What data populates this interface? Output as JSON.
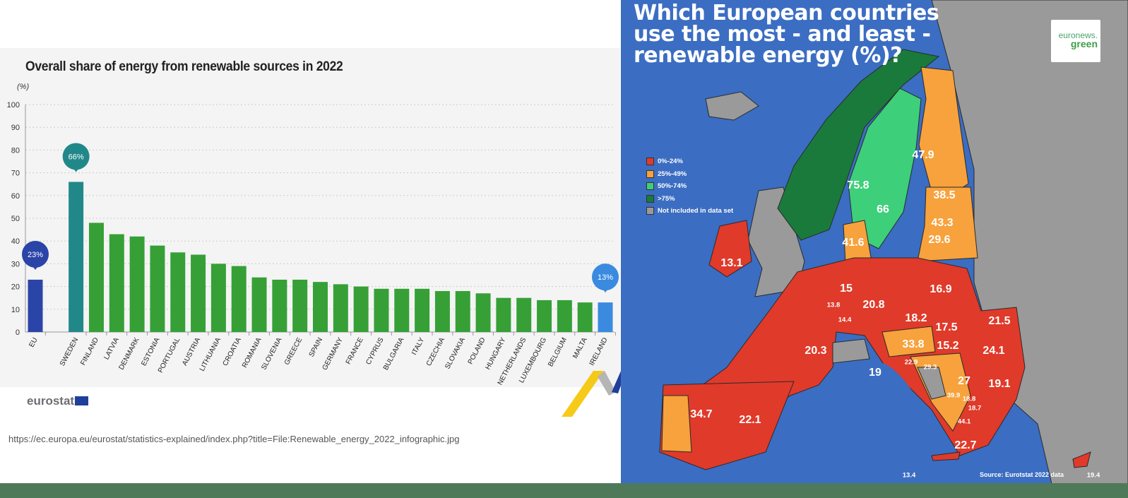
{
  "chart_data": {
    "type": "bar",
    "title": "Overall share of energy from renewable sources in 2022",
    "ylabel": "(%)",
    "ylim": [
      0,
      100
    ],
    "yticks": [
      0,
      10,
      20,
      30,
      40,
      50,
      60,
      70,
      80,
      90,
      100
    ],
    "grid": true,
    "categories": [
      "EU",
      "SWEDEN",
      "FINLAND",
      "LATVIA",
      "DENMARK",
      "ESTONIA",
      "PORTUGAL",
      "AUSTRIA",
      "LITHUANIA",
      "CROATIA",
      "ROMANIA",
      "SLOVENIA",
      "GREECE",
      "SPAIN",
      "GERMANY",
      "FRANCE",
      "CYPRUS",
      "BULGARIA",
      "ITALY",
      "CZECHIA",
      "SLOVAKIA",
      "POLAND",
      "HUNGARY",
      "NETHERLANDS",
      "LUXEMBOURG",
      "BELGIUM",
      "MALTA",
      "IRELAND"
    ],
    "values": [
      23,
      66,
      48,
      43,
      42,
      38,
      35,
      34,
      30,
      29,
      24,
      23,
      23,
      22,
      21,
      20,
      19,
      19,
      19,
      18,
      18,
      17,
      15,
      15,
      14,
      14,
      13,
      13
    ],
    "callouts": [
      {
        "category": "EU",
        "label": "23%"
      },
      {
        "category": "SWEDEN",
        "label": "66%"
      },
      {
        "category": "IRELAND",
        "label": "13%"
      }
    ],
    "colors": {
      "eu": "#2a44a8",
      "highest": "#21888a",
      "default": "#36a037",
      "lowest": "#3a8ae0"
    }
  },
  "footer": {
    "logo_text": "eurostat",
    "url": "https://ec.europa.eu/eurostat/statistics-explained/index.php?title=File:Renewable_energy_2022_infographic.jpg"
  },
  "map": {
    "title_lines": [
      "Which European countries",
      "use the most - and least -",
      "renewable energy (%)?"
    ],
    "logo": {
      "line1": "euronews.",
      "line2": "green"
    },
    "legend": [
      {
        "label": "0%-24%",
        "color": "#e03a2a"
      },
      {
        "label": "25%-49%",
        "color": "#f7a23c"
      },
      {
        "label": "50%-74%",
        "color": "#3ecf7a"
      },
      {
        "label": ">75%",
        "color": "#1a7a3c"
      },
      {
        "label": "Not included in data set",
        "color": "#9a9a9a"
      }
    ],
    "values": [
      "75.8",
      "66",
      "47.9",
      "38.5",
      "43.3",
      "29.6",
      "41.6",
      "13.1",
      "15",
      "13.8",
      "14.4",
      "20.8",
      "16.9",
      "18.2",
      "17.5",
      "33.8",
      "15.2",
      "21.5",
      "24.1",
      "20.3",
      "19",
      "22.9",
      "29.3",
      "27",
      "19.1",
      "39.9",
      "18.8",
      "18.7",
      "44.1",
      "22.1",
      "34.7",
      "22.7",
      "13.4",
      "19.4"
    ],
    "source": "Source: Eurotstat 2022 data"
  }
}
